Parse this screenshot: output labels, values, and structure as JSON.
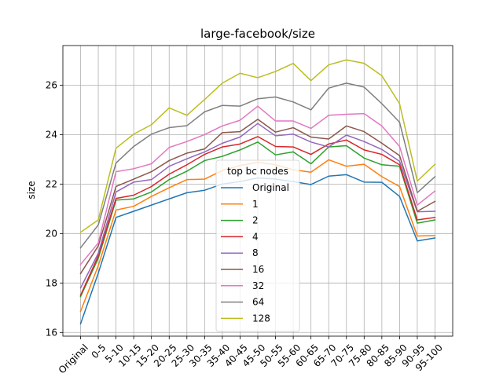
{
  "chart_data": {
    "type": "line",
    "title": "large-facebook/size",
    "xlabel": "",
    "ylabel": "size",
    "categories": [
      "Original",
      "0-5",
      "5-10",
      "10-15",
      "15-20",
      "20-25",
      "25-30",
      "30-35",
      "35-40",
      "40-45",
      "45-50",
      "50-55",
      "55-60",
      "60-65",
      "65-70",
      "70-75",
      "75-80",
      "80-85",
      "85-90",
      "90-95",
      "95-100"
    ],
    "ylim": [
      15.85,
      27.6
    ],
    "yticks": [
      "16",
      "18",
      "20",
      "22",
      "24",
      "26"
    ],
    "grid": true,
    "legend": {
      "title": "top bc nodes",
      "placement": "lower-center"
    },
    "series": [
      {
        "name": "Original",
        "color": "#1f77b4",
        "values": [
          16.35,
          18.4,
          20.65,
          20.9,
          21.15,
          21.4,
          21.65,
          21.75,
          22.0,
          22.1,
          22.25,
          22.2,
          22.1,
          21.98,
          22.32,
          22.38,
          22.08,
          22.07,
          21.5,
          19.7,
          19.82
        ]
      },
      {
        "name": "1",
        "color": "#ff7f0e",
        "values": [
          16.85,
          18.7,
          20.95,
          21.1,
          21.5,
          21.85,
          22.18,
          22.2,
          22.55,
          22.75,
          22.88,
          22.78,
          22.58,
          22.48,
          22.98,
          22.72,
          22.8,
          22.3,
          21.9,
          19.9,
          19.92
        ]
      },
      {
        "name": "2",
        "color": "#2ca02c",
        "values": [
          17.45,
          19.0,
          21.35,
          21.4,
          21.68,
          22.18,
          22.52,
          22.95,
          23.12,
          23.38,
          23.7,
          23.18,
          23.3,
          22.82,
          23.5,
          23.55,
          23.05,
          22.78,
          22.72,
          20.42,
          20.55
        ]
      },
      {
        "name": "4",
        "color": "#d62728",
        "values": [
          17.5,
          19.1,
          21.42,
          21.55,
          21.9,
          22.4,
          22.78,
          23.2,
          23.5,
          23.62,
          23.92,
          23.52,
          23.5,
          23.2,
          23.62,
          23.78,
          23.38,
          23.2,
          22.78,
          20.55,
          20.65
        ]
      },
      {
        "name": "8",
        "color": "#9467bd",
        "values": [
          17.8,
          19.2,
          21.68,
          22.08,
          22.18,
          22.72,
          23.02,
          23.3,
          23.65,
          23.9,
          24.45,
          23.95,
          24.02,
          23.7,
          23.5,
          23.98,
          23.72,
          23.4,
          22.92,
          20.88,
          20.9
        ]
      },
      {
        "name": "16",
        "color": "#8c564b",
        "values": [
          18.38,
          19.5,
          21.9,
          22.2,
          22.5,
          22.95,
          23.25,
          23.42,
          24.08,
          24.12,
          24.62,
          24.1,
          24.28,
          23.9,
          23.82,
          24.35,
          24.12,
          23.65,
          23.15,
          20.9,
          21.3
        ]
      },
      {
        "name": "32",
        "color": "#e377c2",
        "values": [
          18.75,
          19.62,
          22.5,
          22.62,
          22.82,
          23.48,
          23.72,
          24.0,
          24.35,
          24.58,
          25.15,
          24.55,
          24.55,
          24.25,
          24.78,
          24.82,
          24.85,
          24.35,
          23.52,
          21.15,
          21.72
        ]
      },
      {
        "name": "64",
        "color": "#7f7f7f",
        "values": [
          19.42,
          20.35,
          22.85,
          23.52,
          24.02,
          24.28,
          24.36,
          24.92,
          25.18,
          25.15,
          25.45,
          25.52,
          25.32,
          25.0,
          25.88,
          26.08,
          25.92,
          25.25,
          24.5,
          21.65,
          22.3
        ]
      },
      {
        "name": "128",
        "color": "#bcbd22",
        "values": [
          20.05,
          20.55,
          23.45,
          24.02,
          24.4,
          25.08,
          24.78,
          25.42,
          26.08,
          26.48,
          26.3,
          26.55,
          26.88,
          26.18,
          26.82,
          27.02,
          26.88,
          26.38,
          25.25,
          22.12,
          22.8
        ]
      }
    ]
  }
}
